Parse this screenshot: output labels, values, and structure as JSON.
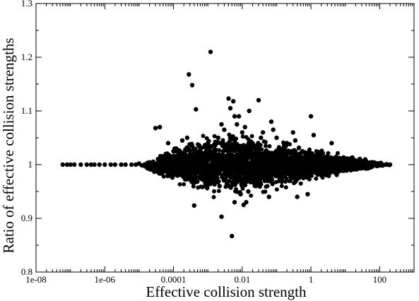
{
  "chart_data": {
    "type": "scatter",
    "title": "",
    "xlabel": "Effective collision strength",
    "ylabel": "Ratio of effective collision strengths",
    "x_scale": "log",
    "xlim": [
      1e-08,
      1000
    ],
    "ylim": [
      0.8,
      1.3
    ],
    "x_ticks": [
      {
        "value": 1e-08,
        "label": "1e-08"
      },
      {
        "value": 1e-06,
        "label": "1e-06"
      },
      {
        "value": 0.0001,
        "label": "0.0001"
      },
      {
        "value": 0.01,
        "label": "0.01"
      },
      {
        "value": 1,
        "label": "1"
      },
      {
        "value": 100,
        "label": "100"
      }
    ],
    "y_ticks": [
      {
        "value": 0.8,
        "label": "0.8"
      },
      {
        "value": 0.9,
        "label": "0.9"
      },
      {
        "value": 1.0,
        "label": "1"
      },
      {
        "value": 1.1,
        "label": "1.1"
      },
      {
        "value": 1.2,
        "label": "1.2"
      },
      {
        "value": 1.3,
        "label": "1.3"
      }
    ],
    "grid": false,
    "marker_color": "#000000",
    "series": [
      {
        "points": [
          [
            6e-08,
            1.0
          ],
          [
            8e-08,
            1.0
          ],
          [
            1e-07,
            1.0
          ],
          [
            1.3e-07,
            1.0
          ],
          [
            2e-07,
            1.0
          ],
          [
            3e-07,
            1.0
          ],
          [
            4e-07,
            1.0
          ],
          [
            5e-07,
            1.0
          ],
          [
            7e-07,
            1.0
          ],
          [
            1e-06,
            1.0
          ],
          [
            1.5e-06,
            1.0
          ],
          [
            2e-06,
            1.0
          ],
          [
            3e-06,
            1.0
          ],
          [
            4e-06,
            1.0
          ],
          [
            6e-06,
            1.0
          ],
          [
            8e-06,
            1.0
          ],
          [
            1e-05,
            1.002
          ],
          [
            1.5e-05,
            1.0
          ],
          [
            2e-05,
            0.998
          ],
          [
            2.5e-05,
            1.005
          ],
          [
            3e-05,
            1.068
          ],
          [
            3.5e-05,
            1.003
          ],
          [
            4e-05,
            1.07
          ],
          [
            4.5e-05,
            1.01
          ],
          [
            5e-05,
            0.995
          ],
          [
            6e-05,
            1.02
          ],
          [
            6.5e-05,
            1.015
          ],
          [
            7e-05,
            1.04
          ],
          [
            8e-05,
            1.005
          ],
          [
            9e-05,
            0.985
          ],
          [
            0.0001,
            1.025
          ],
          [
            0.00012,
            1.03
          ],
          [
            0.00015,
            1.02
          ],
          [
            0.00018,
            1.01
          ],
          [
            0.0002,
            0.99
          ],
          [
            0.00025,
            1.05
          ],
          [
            0.0003,
            0.98
          ],
          [
            0.00035,
            1.035
          ],
          [
            0.00028,
            1.168
          ],
          [
            0.00035,
            1.148
          ],
          [
            0.00045,
            1.103
          ],
          [
            0.0004,
            1.03
          ],
          [
            0.0005,
            0.985
          ],
          [
            0.0006,
            1.015
          ],
          [
            0.0012,
            1.21
          ],
          [
            0.00018,
            1.045
          ],
          [
            0.0004,
            0.924
          ],
          [
            0.0025,
            0.903
          ],
          [
            0.0025,
            1.075
          ],
          [
            0.0007,
            1.015
          ],
          [
            0.0008,
            0.97
          ],
          [
            0.001,
            1.04
          ],
          [
            0.0012,
            1.0
          ],
          [
            0.0015,
            0.975
          ],
          [
            0.002,
            1.05
          ],
          [
            0.0022,
            0.96
          ],
          [
            0.003,
            1.065
          ],
          [
            0.0035,
            0.96
          ],
          [
            0.004,
            1.123
          ],
          [
            0.0045,
            1.105
          ],
          [
            0.005,
            0.867
          ],
          [
            0.0055,
            1.118
          ],
          [
            0.006,
            1.09
          ],
          [
            0.007,
            1.075
          ],
          [
            0.008,
            1.09
          ],
          [
            0.009,
            0.945
          ],
          [
            0.01,
            1.06
          ],
          [
            0.012,
            1.07
          ],
          [
            0.015,
            0.95
          ],
          [
            0.006,
            0.93
          ],
          [
            0.011,
            0.925
          ],
          [
            0.013,
            0.93
          ],
          [
            0.016,
            1.1
          ],
          [
            0.02,
            1.04
          ],
          [
            0.025,
            0.96
          ],
          [
            0.03,
            1.12
          ],
          [
            0.035,
            1.05
          ],
          [
            0.04,
            1.06
          ],
          [
            0.05,
            0.975
          ],
          [
            0.06,
            0.94
          ],
          [
            0.07,
            1.08
          ],
          [
            0.08,
            1.065
          ],
          [
            0.1,
            1.05
          ],
          [
            0.12,
            1.02
          ],
          [
            0.15,
            0.985
          ],
          [
            0.2,
            1.04
          ],
          [
            0.25,
            0.97
          ],
          [
            0.3,
            1.06
          ],
          [
            0.35,
            1.045
          ],
          [
            0.4,
            0.94
          ],
          [
            0.5,
            1.02
          ],
          [
            0.6,
            0.975
          ],
          [
            0.8,
            0.945
          ],
          [
            1.0,
            1.09
          ],
          [
            1.2,
            1.055
          ],
          [
            1.5,
            1.02
          ],
          [
            2,
            0.98
          ],
          [
            3,
            1.015
          ],
          [
            4,
            1.04
          ],
          [
            5,
            0.985
          ],
          [
            7,
            1.01
          ],
          [
            10,
            0.99
          ],
          [
            12,
            1.0
          ],
          [
            15,
            1.005
          ],
          [
            20,
            0.995
          ],
          [
            25,
            1.0
          ],
          [
            30,
            1.005
          ],
          [
            40,
            0.998
          ],
          [
            50,
            1.0
          ],
          [
            60,
            1.002
          ],
          [
            80,
            1.0
          ],
          [
            100,
            1.0
          ],
          [
            120,
            1.0
          ],
          [
            150,
            1.0
          ],
          [
            200,
            1.0
          ]
        ]
      }
    ],
    "band": {
      "description_hidden": false,
      "x_from": 1e-05,
      "x_to": 200,
      "center": 1.0,
      "half_width_profile": [
        [
          1e-05,
          0.004
        ],
        [
          0.0001,
          0.025
        ],
        [
          0.001,
          0.045
        ],
        [
          0.01,
          0.045
        ],
        [
          0.1,
          0.035
        ],
        [
          1,
          0.025
        ],
        [
          10,
          0.012
        ],
        [
          100,
          0.004
        ],
        [
          200,
          0.002
        ]
      ],
      "count": 2600
    }
  }
}
